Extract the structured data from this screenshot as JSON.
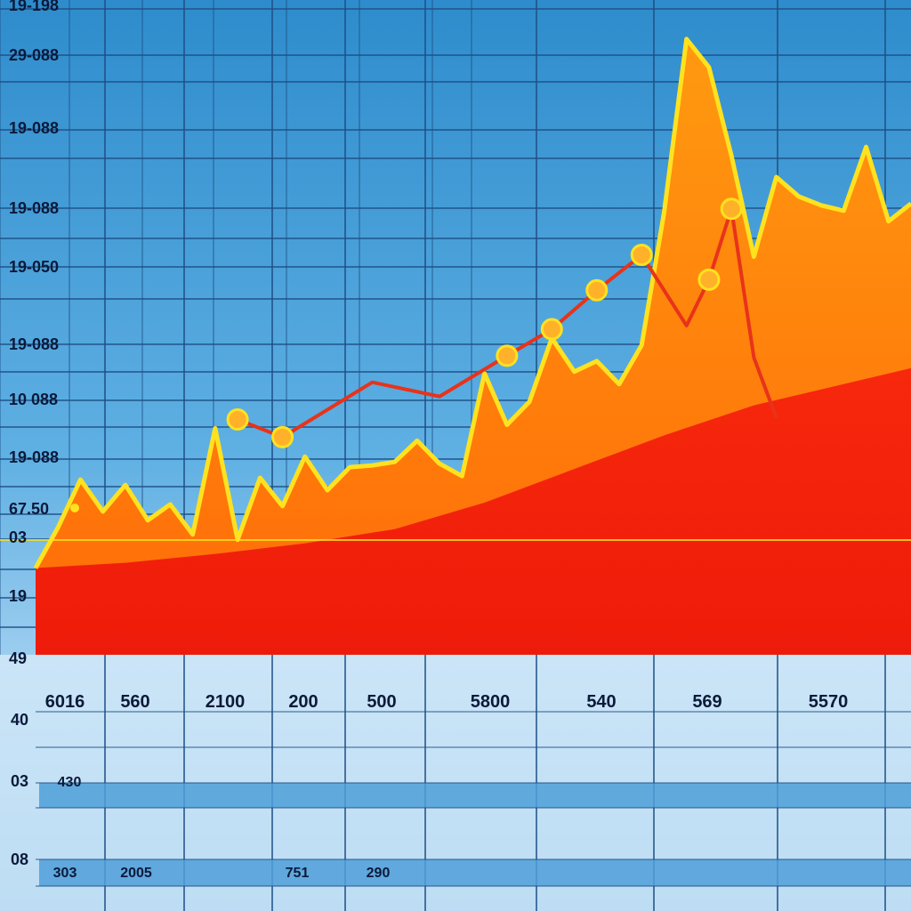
{
  "chart_data": {
    "type": "area",
    "y_tick_labels": [
      "19-198",
      "29-088",
      "19-088",
      "19-088",
      "19-050",
      "19-088",
      "10 088",
      "19-088",
      "67.50",
      "03",
      "19",
      "49"
    ],
    "x_tick_labels": [
      "6016",
      "560",
      "2100",
      "200",
      "500",
      "5800",
      "540",
      "569",
      "5570"
    ],
    "table_side_labels": [
      "40",
      "03",
      "08"
    ],
    "table_row_labels": [
      "430",
      "303",
      "2005",
      "751",
      "290"
    ],
    "grid": true,
    "colors": {
      "background_top": "#2b8fcf",
      "background_bottom": "#cfe7f7",
      "grid": "#1d4f86",
      "orange_area": "#ff8c10",
      "red_area": "#f21d0a",
      "highlight": "#ffe21f",
      "marker": "#ffb12a",
      "line": "#e8331a"
    },
    "series": [
      {
        "x": [
          0,
          1,
          2,
          3,
          4,
          5,
          6,
          7,
          8,
          9,
          10,
          11,
          12,
          13,
          14,
          15,
          16,
          17,
          18,
          19,
          20,
          21,
          22,
          23,
          24,
          25,
          26,
          27,
          28,
          29,
          30,
          31,
          32,
          33,
          34,
          35,
          36,
          37,
          38,
          39
        ],
        "values": [
          49,
          72,
          99,
          81,
          96,
          76,
          85,
          68,
          128,
          65,
          100,
          84,
          112,
          93,
          106,
          107,
          109,
          121,
          108,
          101,
          159,
          130,
          143,
          179,
          160,
          166,
          153,
          175,
          250,
          348,
          332,
          282,
          225,
          270,
          259,
          254,
          251,
          287,
          245,
          255
        ]
      },
      {
        "x": [
          0,
          4,
          8,
          12,
          16,
          20,
          24,
          28,
          32,
          36,
          39
        ],
        "values": [
          49,
          52,
          57,
          63,
          71,
          86,
          105,
          124,
          141,
          153,
          162
        ]
      },
      {
        "x": [
          9,
          11,
          15,
          18,
          21,
          23,
          25,
          27,
          29,
          30,
          31,
          32,
          33
        ],
        "values": [
          133,
          123,
          154,
          146,
          169,
          184,
          206,
          226,
          186,
          212,
          252,
          168,
          134
        ],
        "markers": [
          true,
          true,
          false,
          false,
          true,
          true,
          true,
          true,
          false,
          true,
          true,
          false,
          false
        ]
      }
    ]
  }
}
